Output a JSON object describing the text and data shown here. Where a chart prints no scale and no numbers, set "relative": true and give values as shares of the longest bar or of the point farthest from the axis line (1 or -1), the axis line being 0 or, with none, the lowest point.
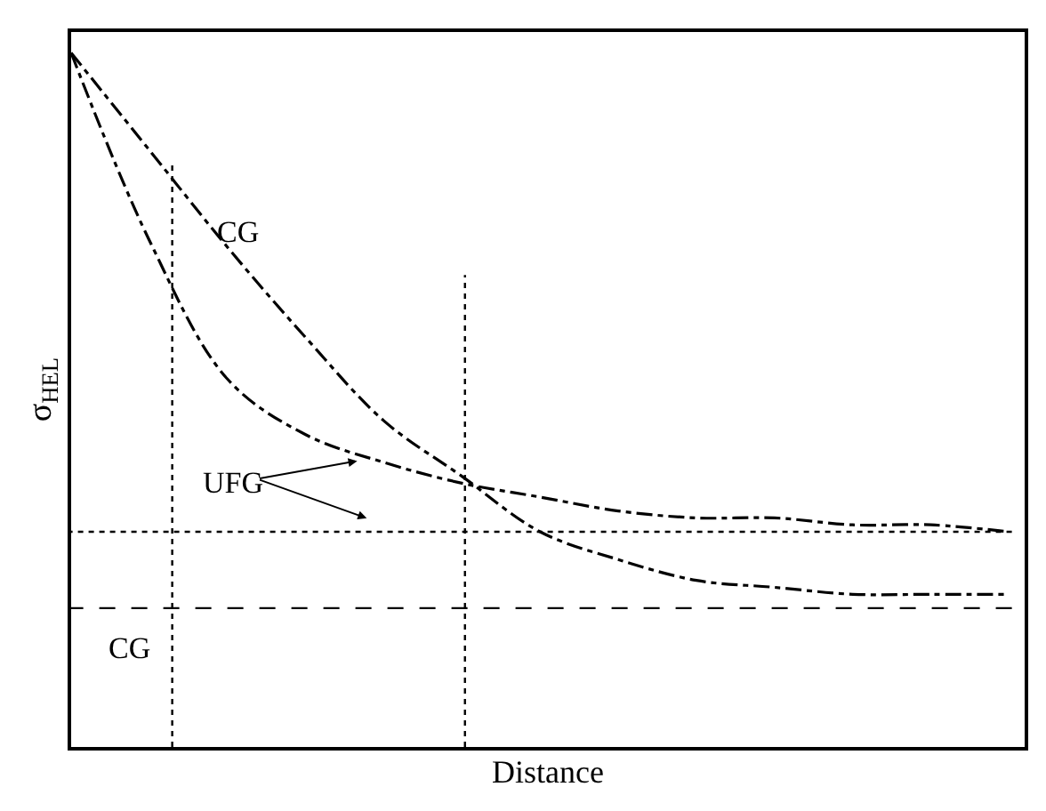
{
  "chart_data": {
    "type": "line",
    "relative": true,
    "xlabel": "Distance",
    "ylabel": "σ$_{HEL}$",
    "categories": [
      null,
      null,
      null,
      null,
      null,
      null,
      null,
      null,
      null,
      null,
      null,
      null,
      null
    ],
    "series": [
      {
        "color": "#000000",
        "line_style": "dashed",
        "values": [
          1.0,
          0.86,
          0.72,
          0.59,
          0.47,
          0.39,
          0.31,
          0.27,
          0.24,
          0.23,
          0.22,
          0.22,
          0.22
        ]
      },
      {
        "color": "#000000",
        "line_style": "dashed",
        "values": [
          1.0,
          0.73,
          0.53,
          0.45,
          0.41,
          0.38,
          0.36,
          0.34,
          0.33,
          0.33,
          0.32,
          0.32,
          0.31
        ]
      }
    ],
    "ref_lines": [
      {
        "axis": "y",
        "value": 0.31,
        "line_style": "dotted",
        "color": "#000000"
      },
      {
        "axis": "y",
        "value": 0.2,
        "line_style": "dashed",
        "color": "#000000"
      }
    ],
    "annotations": [
      "CG",
      "UFG",
      "CG"
    ],
    "marker": "none"
  }
}
